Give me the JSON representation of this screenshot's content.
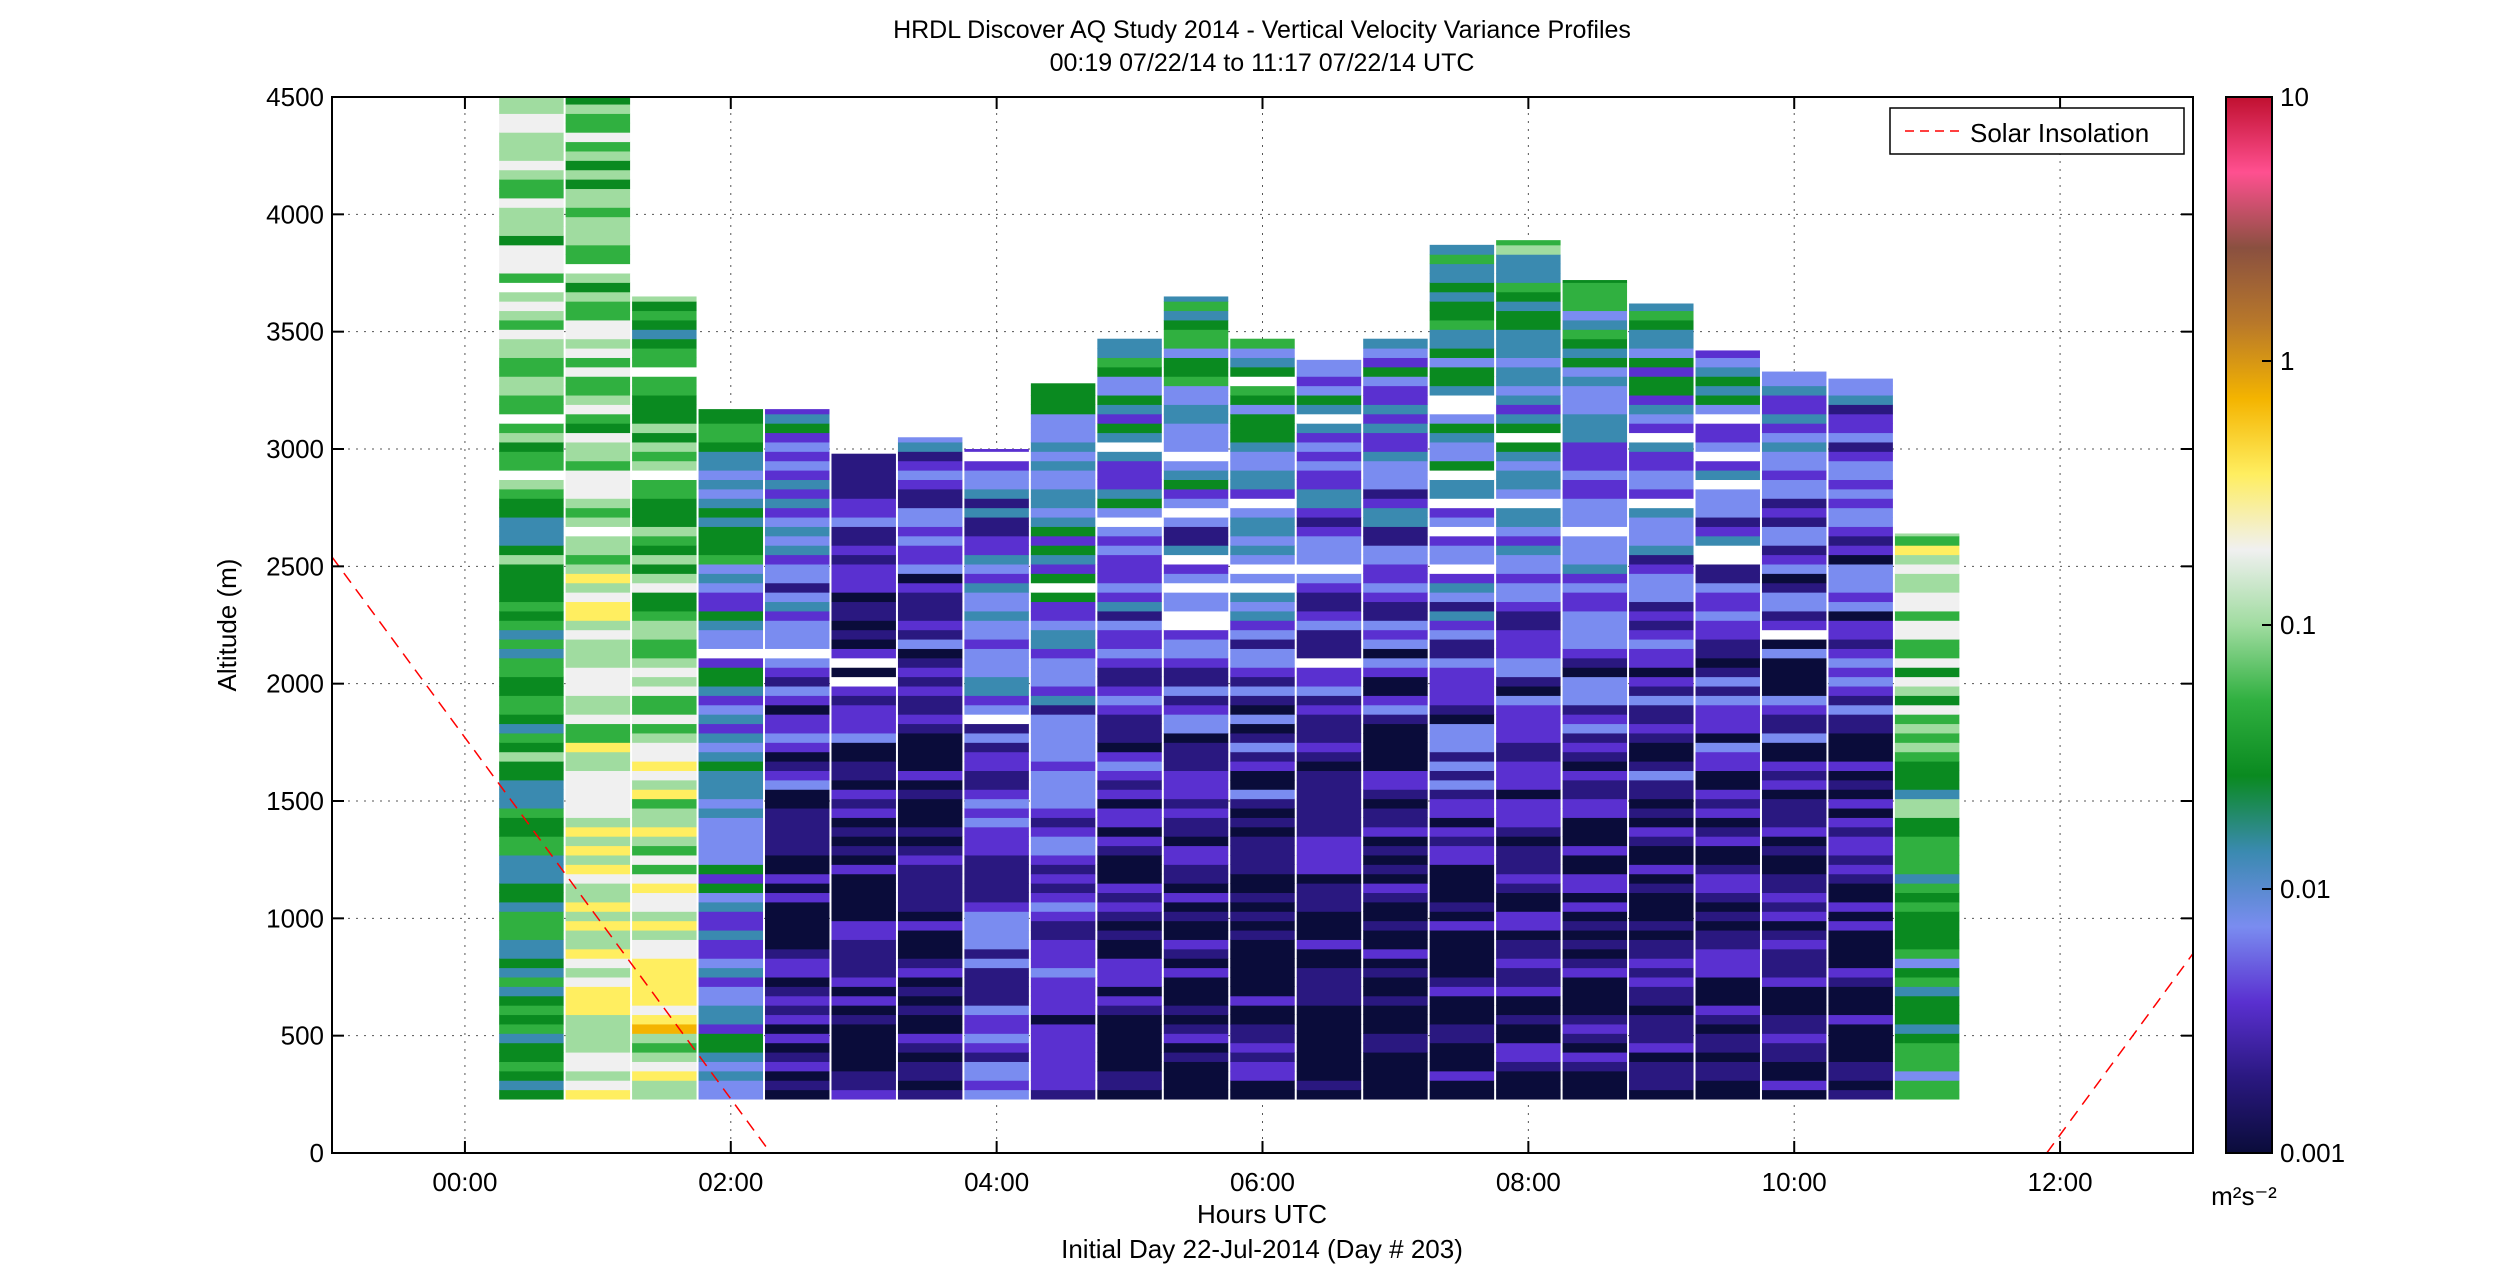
{
  "chart_data": {
    "type": "heatmap",
    "title": "HRDL Discover AQ Study 2014 - Vertical Velocity Variance Profiles",
    "subtitle": "00:19 07/22/14 to 11:17 07/22/14  UTC",
    "xlabel": "Hours UTC",
    "xlabel2": "Initial Day 22-Jul-2014 (Day # 203)",
    "ylabel": "Altitude (m)",
    "xlim": [
      -1.0,
      13.0
    ],
    "ylim": [
      0,
      4500
    ],
    "xticks": [
      0,
      2,
      4,
      6,
      8,
      10,
      12
    ],
    "xtick_labels": [
      "00:00",
      "02:00",
      "04:00",
      "06:00",
      "08:00",
      "10:00",
      "12:00"
    ],
    "yticks": [
      0,
      500,
      1000,
      1500,
      2000,
      2500,
      3000,
      3500,
      4000,
      4500
    ],
    "ytick_labels": [
      "0",
      "500",
      "1000",
      "1500",
      "2000",
      "2500",
      "3000",
      "3500",
      "4000",
      "4500"
    ],
    "grid": true,
    "legend": {
      "position": "top-right",
      "entries": [
        {
          "label": "Solar Insolation",
          "style": "dashed",
          "color": "#ff0000"
        }
      ]
    },
    "colorbar": {
      "scale": "log",
      "min": 0.001,
      "max": 10,
      "ticks": [
        0.001,
        0.01,
        0.1,
        1,
        10
      ],
      "tick_labels": [
        "0.001",
        "0.01",
        "0.1",
        "1",
        "10"
      ],
      "unit": "m²s⁻²",
      "colormap": [
        "#0a0c3a",
        "#2a1880",
        "#5a30d0",
        "#7a8cf0",
        "#3a8ab0",
        "#0a8a20",
        "#30b040",
        "#a0dca0",
        "#f0f0f0",
        "#ffee60",
        "#f4b400",
        "#b8782a",
        "#8a5040",
        "#ff5090",
        "#c01030"
      ]
    },
    "profile_bottom_m": 230,
    "profiles": [
      {
        "t": 0.5,
        "top": 4500,
        "base": 0.02,
        "upper": 0.12
      },
      {
        "t": 1.0,
        "top": 4500,
        "base": 0.2,
        "upper": 0.05
      },
      {
        "t": 1.5,
        "top": 3650,
        "base": 0.2,
        "upper": 0.03
      },
      {
        "t": 2.0,
        "top": 3170,
        "base": 0.008,
        "upper": 0.02
      },
      {
        "t": 2.5,
        "top": 3170,
        "base": 0.0013,
        "upper": 0.01
      },
      {
        "t": 3.0,
        "top": 2980,
        "base": 0.0012,
        "upper": 0.005
      },
      {
        "t": 3.5,
        "top": 3050,
        "base": 0.0012,
        "upper": 0.006
      },
      {
        "t": 4.0,
        "top": 3000,
        "base": 0.004,
        "upper": 0.005
      },
      {
        "t": 4.5,
        "top": 3280,
        "base": 0.003,
        "upper": 0.02
      },
      {
        "t": 5.0,
        "top": 3470,
        "base": 0.0012,
        "upper": 0.02
      },
      {
        "t": 5.5,
        "top": 3650,
        "base": 0.0011,
        "upper": 0.03
      },
      {
        "t": 6.0,
        "top": 3470,
        "base": 0.0011,
        "upper": 0.02
      },
      {
        "t": 6.5,
        "top": 3380,
        "base": 0.0011,
        "upper": 0.01
      },
      {
        "t": 7.0,
        "top": 3470,
        "base": 0.0011,
        "upper": 0.01
      },
      {
        "t": 7.5,
        "top": 3870,
        "base": 0.0011,
        "upper": 0.05
      },
      {
        "t": 8.0,
        "top": 3890,
        "base": 0.0011,
        "upper": 0.04
      },
      {
        "t": 8.5,
        "top": 3720,
        "base": 0.0012,
        "upper": 0.03
      },
      {
        "t": 9.0,
        "top": 3620,
        "base": 0.0012,
        "upper": 0.02
      },
      {
        "t": 9.5,
        "top": 3420,
        "base": 0.0012,
        "upper": 0.01
      },
      {
        "t": 10.0,
        "top": 3330,
        "base": 0.0012,
        "upper": 0.006
      },
      {
        "t": 10.5,
        "top": 3300,
        "base": 0.0012,
        "upper": 0.005
      },
      {
        "t": 11.0,
        "top": 2640,
        "base": 0.02,
        "upper": 0.15
      }
    ],
    "solar_insolation": [
      {
        "x": [
          -1.0,
          2.3
        ],
        "y": [
          2540,
          0
        ]
      },
      {
        "x": [
          11.9,
          13.0
        ],
        "y": [
          0,
          850
        ]
      }
    ]
  }
}
